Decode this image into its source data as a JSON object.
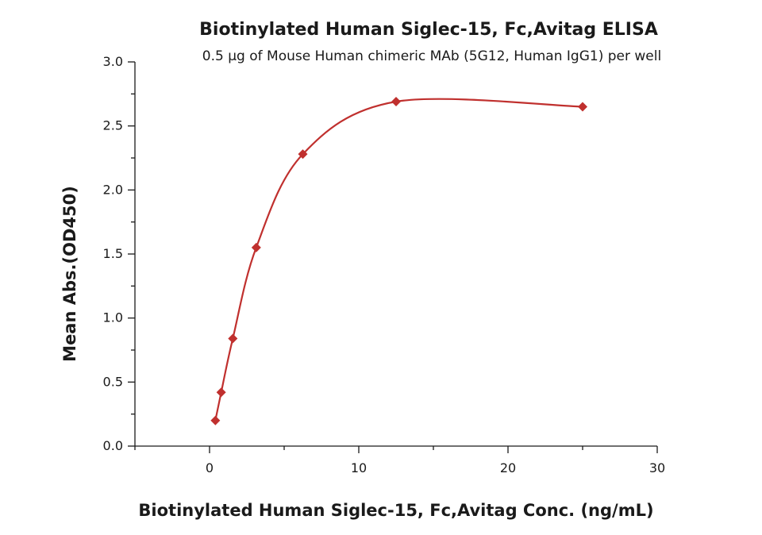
{
  "chart_data": {
    "type": "scatter",
    "title": "Biotinylated Human Siglec-15, Fc,Avitag ELISA",
    "subtitle": "0.5 µg of Mouse Human chimeric MAb (5G12, Human IgG1) per well",
    "xlabel": "Biotinylated Human Siglec-15, Fc,Avitag Conc. (ng/mL)",
    "ylabel": "Mean Abs.(OD450)",
    "xlim": [
      -5,
      30
    ],
    "ylim": [
      0,
      3.0
    ],
    "x_ticks": [
      0,
      10,
      20,
      30
    ],
    "x_tick_labels": [
      "0",
      "10",
      "20",
      "30"
    ],
    "y_ticks": [
      0.0,
      0.5,
      1.0,
      1.5,
      2.0,
      2.5,
      3.0
    ],
    "y_tick_labels": [
      "0.0",
      "0.5",
      "1.0",
      "1.5",
      "2.0",
      "2.5",
      "3.0"
    ],
    "series": [
      {
        "x": [
          0.39,
          0.78,
          1.56,
          3.13,
          6.25,
          12.5,
          25
        ],
        "y": [
          0.2,
          0.42,
          0.84,
          1.55,
          2.28,
          2.69,
          2.65
        ],
        "color": "#c0302e",
        "marker": "diamond",
        "fit_curve": true
      }
    ],
    "grid": false,
    "legend": false
  }
}
